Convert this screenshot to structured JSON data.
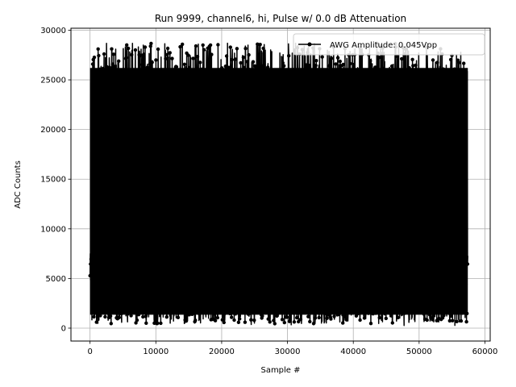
{
  "chart_data": {
    "type": "line",
    "title": "Run 9999, channel6, hi, Pulse w/ 0.0 dB Attenuation",
    "xlabel": "Sample #",
    "ylabel": "ADC Counts",
    "xlim": [
      -2900,
      60800
    ],
    "ylim": [
      -1300,
      30200
    ],
    "xticks": [
      0,
      10000,
      20000,
      30000,
      40000,
      50000,
      60000
    ],
    "xtick_labels": [
      "0",
      "10000",
      "20000",
      "30000",
      "40000",
      "50000",
      "60000"
    ],
    "yticks": [
      0,
      5000,
      10000,
      15000,
      20000,
      25000,
      30000
    ],
    "ytick_labels": [
      "0",
      "5000",
      "10000",
      "15000",
      "20000",
      "25000",
      "30000"
    ],
    "grid": true,
    "legend_position": "upper right",
    "series": [
      {
        "name": "AWG Amplitude: 0.045Vpp",
        "color": "#000000",
        "marker": "circle",
        "x_range": [
          0,
          57400
        ],
        "y_range": [
          150,
          28700
        ],
        "baseline": 5800
      }
    ]
  }
}
